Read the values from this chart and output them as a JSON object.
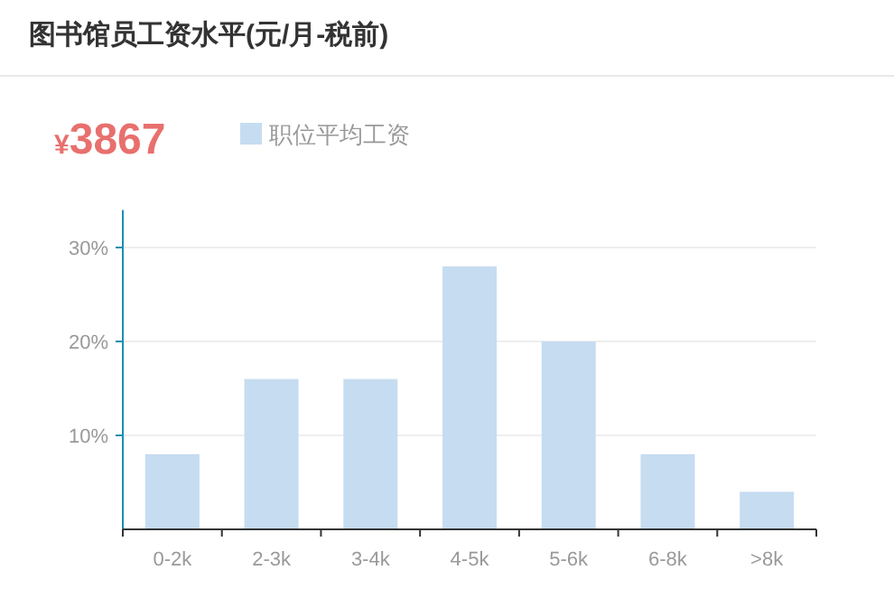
{
  "chart_data": {
    "type": "bar",
    "title": "图书馆员工资水平(元/月-税前)",
    "annotations": [
      "¥3867"
    ],
    "categories": [
      "0-2k",
      "2-3k",
      "3-4k",
      "4-5k",
      "5-6k",
      "6-8k",
      ">8k"
    ],
    "series": [
      {
        "name": "职位平均工资",
        "color": "#c6dcf1",
        "values": [
          8,
          16,
          16,
          28,
          20,
          8,
          4
        ]
      }
    ],
    "ylim": [
      0,
      34
    ],
    "yticks": [
      {
        "value": 10,
        "label": "10%"
      },
      {
        "value": 20,
        "label": "20%"
      },
      {
        "value": 30,
        "label": "30%"
      }
    ],
    "grid": "y",
    "legend": "top left"
  }
}
